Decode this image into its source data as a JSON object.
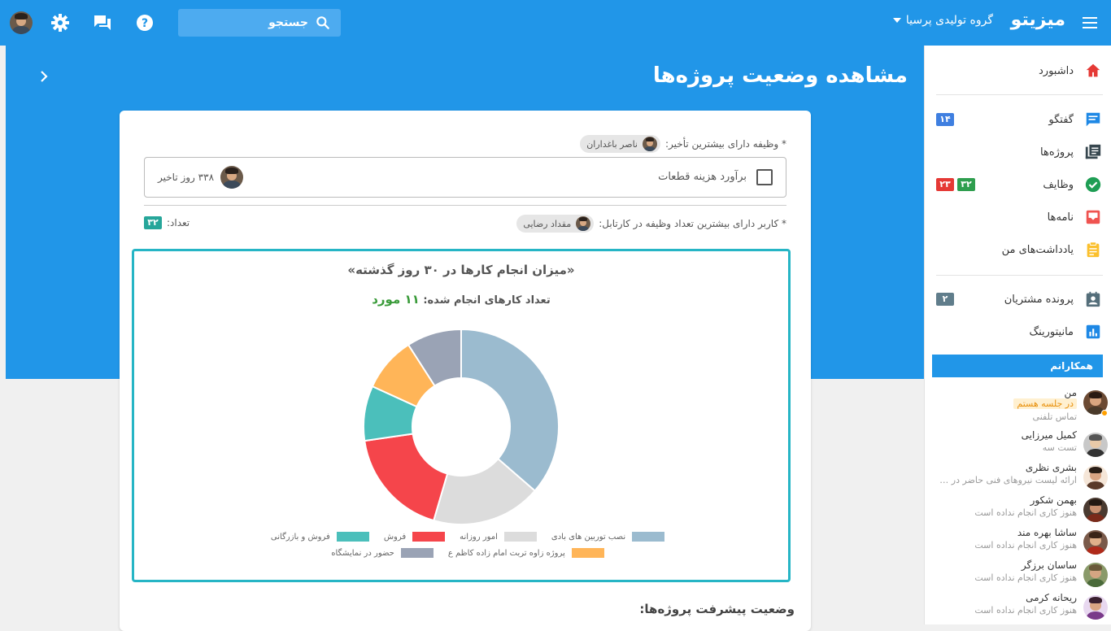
{
  "topbar": {
    "brand": "میزیتو",
    "org_name": "گروه تولیدی پرسیا",
    "search_placeholder": "جستجو"
  },
  "page": {
    "title": "مشاهده وضعیت پروژه‌ها"
  },
  "sidebar": {
    "items": [
      {
        "label": "داشبورد",
        "icon": "home-icon",
        "color": "#e53935"
      },
      {
        "label": "گفتگو",
        "icon": "chat-icon",
        "color": "#1e88e5",
        "badges": [
          {
            "text": "۱۴",
            "color": "#3f7fe0"
          }
        ]
      },
      {
        "label": "پروژه‌ها",
        "icon": "projects-icon",
        "color": "#37474f"
      },
      {
        "label": "وظایف",
        "icon": "tasks-check-icon",
        "color": "#1e9e54",
        "badges": [
          {
            "text": "۳۲",
            "color": "#2e9e4e"
          },
          {
            "text": "۲۳",
            "color": "#e53935"
          }
        ]
      },
      {
        "label": "نامه‌ها",
        "icon": "inbox-icon",
        "color": "#ef5350"
      },
      {
        "label": "یادداشت‌های من",
        "icon": "notes-icon",
        "color": "#fbc02d"
      },
      {
        "label": "پرونده مشتریان",
        "icon": "customer-file-icon",
        "color": "#546e7a",
        "badges": [
          {
            "text": "۲",
            "color": "#607d8b"
          }
        ]
      },
      {
        "label": "مانیتورینگ",
        "icon": "monitoring-icon",
        "color": "#1e88e5"
      }
    ],
    "colleagues_title": "همکارانم",
    "colleagues": [
      {
        "name": "من",
        "tag": "در جلسه هستم",
        "status": "تماس تلفنی"
      },
      {
        "name": "کمیل میرزایی",
        "status": "تست سه"
      },
      {
        "name": "بشری نظری",
        "status": "ارائه لیست نیروهای فنی حاضر در پ..."
      },
      {
        "name": "بهمن شکور",
        "status": "هنوز کاری انجام نداده است"
      },
      {
        "name": "ساشا بهره مند",
        "status": "هنوز کاری انجام نداده است"
      },
      {
        "name": "ساسان برزگر",
        "status": "هنوز کاری انجام نداده است"
      },
      {
        "name": "ریحانه کرمی",
        "status": "هنوز کاری انجام نداده است"
      }
    ]
  },
  "card": {
    "most_delayed_label": "* وظیفه دارای بیشترین تأخیر:",
    "most_delayed_user": "ناصر باغداران",
    "task_title": "برآورد هزینه قطعات",
    "task_delay": "۳۳۸ روز تاخیر",
    "most_tasks_label": "* کاربر دارای بیشترین تعداد وظیفه در کارتابل:",
    "most_tasks_user": "مقداد رضایی",
    "count_label": "تعداد:",
    "count_value": "۳۲",
    "progress_title": "وضعیت پیشرفت پروژه‌ها:"
  },
  "chart_data": {
    "type": "pie",
    "donut": true,
    "title": "«میزان انجام کارها در ۳۰ روز گذشته»",
    "subtitle_label": "تعداد کارهای انجام شده:",
    "subtitle_value": "۱۱ مورد",
    "slices": [
      {
        "name": "نصب توربین های بادی",
        "value": 4,
        "color": "#9bbbcf"
      },
      {
        "name": "امور روزانه",
        "value": 2,
        "color": "#dcdcdc"
      },
      {
        "name": "فروش",
        "value": 2,
        "color": "#f5454b"
      },
      {
        "name": "فروش و بازرگانی",
        "value": 1,
        "color": "#4bbfbb"
      },
      {
        "name": "پروژه زاوه تربت امام زاده کاظم ع",
        "value": 1,
        "color": "#ffb558"
      },
      {
        "name": "حضور در نمایشگاه",
        "value": 1,
        "color": "#9aa3b5"
      }
    ]
  }
}
